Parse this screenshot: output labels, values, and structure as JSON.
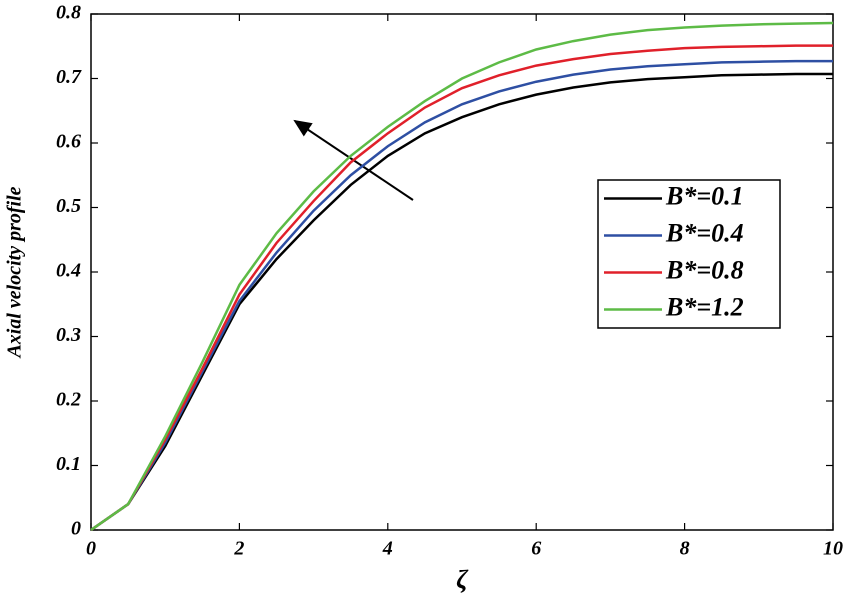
{
  "chart_data": {
    "type": "line",
    "x_label": "ζ",
    "y_label": "Axial velocity profile",
    "x": [
      0,
      0.5,
      1,
      1.5,
      2,
      2.5,
      3,
      3.5,
      4,
      4.5,
      5,
      5.5,
      6,
      6.5,
      7,
      7.5,
      8,
      8.5,
      9,
      9.5,
      10
    ],
    "series": [
      {
        "name": "B*=0.1",
        "color": "#000000",
        "values": [
          0,
          0.04,
          0.13,
          0.24,
          0.35,
          0.42,
          0.48,
          0.535,
          0.58,
          0.615,
          0.64,
          0.66,
          0.675,
          0.686,
          0.694,
          0.699,
          0.702,
          0.705,
          0.706,
          0.707,
          0.707
        ]
      },
      {
        "name": "B*=0.4",
        "color": "#2e4fa3",
        "values": [
          0,
          0.04,
          0.135,
          0.245,
          0.355,
          0.43,
          0.495,
          0.55,
          0.595,
          0.632,
          0.66,
          0.68,
          0.695,
          0.706,
          0.714,
          0.719,
          0.722,
          0.725,
          0.726,
          0.727,
          0.727
        ]
      },
      {
        "name": "B*=0.8",
        "color": "#e0202a",
        "values": [
          0,
          0.04,
          0.14,
          0.25,
          0.365,
          0.445,
          0.51,
          0.57,
          0.615,
          0.655,
          0.685,
          0.705,
          0.72,
          0.73,
          0.738,
          0.743,
          0.747,
          0.749,
          0.75,
          0.751,
          0.751
        ]
      },
      {
        "name": "B*=1.2",
        "color": "#5dbb46",
        "values": [
          0,
          0.04,
          0.145,
          0.26,
          0.38,
          0.46,
          0.525,
          0.58,
          0.625,
          0.665,
          0.7,
          0.725,
          0.745,
          0.758,
          0.768,
          0.775,
          0.779,
          0.782,
          0.784,
          0.785,
          0.786
        ]
      }
    ],
    "xlim": [
      0,
      10
    ],
    "xticks": [
      0,
      2,
      4,
      6,
      8,
      10
    ],
    "ylim": [
      0,
      0.8
    ],
    "yticks": [
      0,
      0.1,
      0.2,
      0.3,
      0.4,
      0.5,
      0.6,
      0.7,
      0.8
    ],
    "legend": "right"
  }
}
